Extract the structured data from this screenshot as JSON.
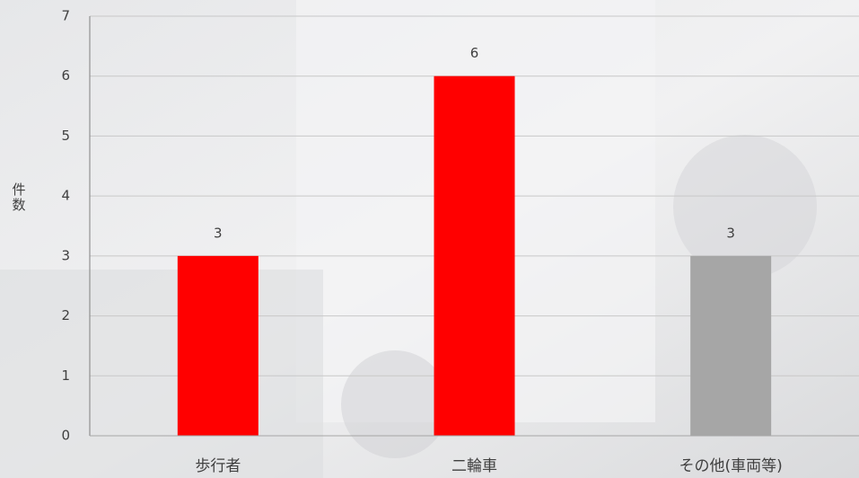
{
  "chart_data": {
    "type": "bar",
    "y_label": "件数",
    "categories": [
      "歩行者",
      "二輪車",
      "その他(車両等)"
    ],
    "values": [
      3,
      6,
      3
    ],
    "colors": [
      "#ff0000",
      "#ff0000",
      "#a6a6a6"
    ],
    "ylim": [
      0,
      7
    ],
    "yticks": [
      0,
      1,
      2,
      3,
      4,
      5,
      6,
      7
    ],
    "grid": true,
    "data_labels": true
  }
}
